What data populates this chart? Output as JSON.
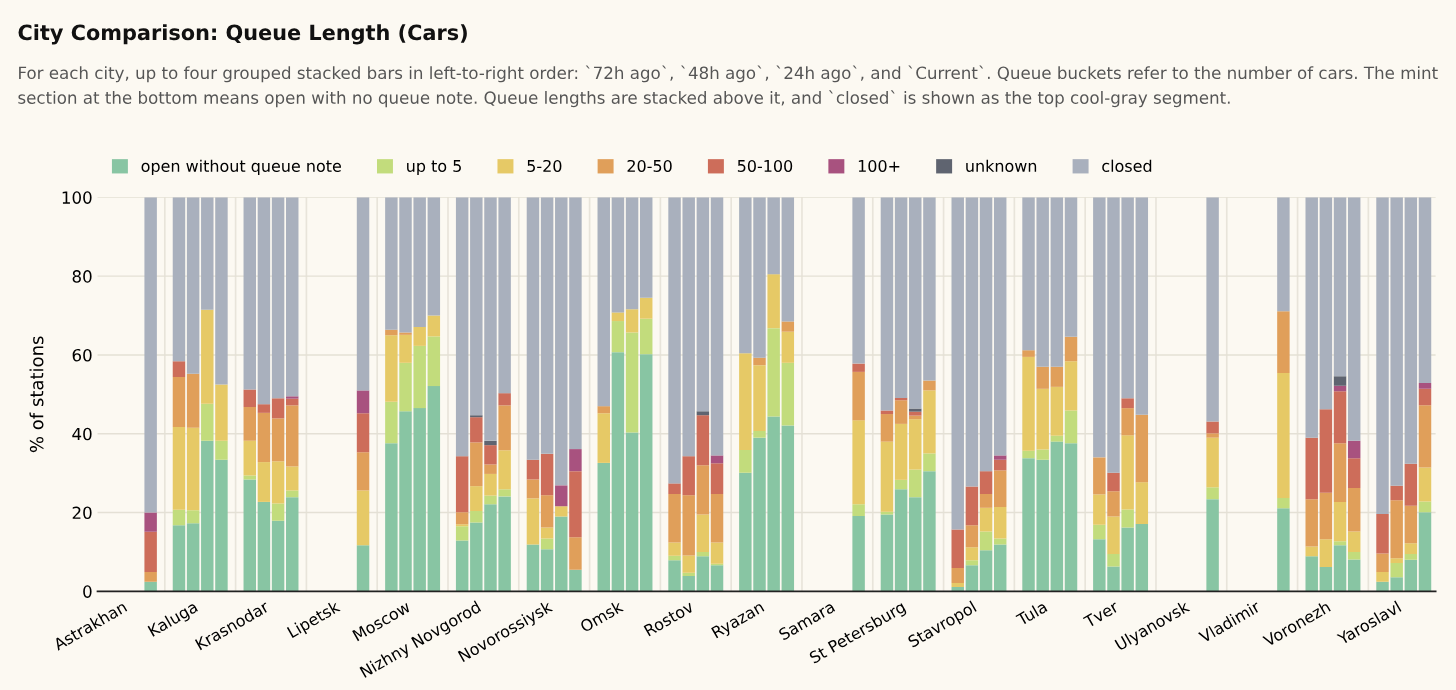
{
  "chart_data": {
    "type": "bar",
    "stacked": true,
    "title": "City Comparison: Queue Length (Cars)",
    "subtitle": "For each city, up to four grouped stacked bars in left-to-right order: `72h ago`, `48h ago`, `24h ago`, and `Current`. Queue buckets refer to the number of cars. The mint section at the bottom means open with no queue note. Queue lengths are stacked above it, and `closed` is shown as the top cool-gray segment.",
    "ylabel": "% of stations",
    "ylim": [
      0,
      100
    ],
    "yticks": [
      0,
      20,
      40,
      60,
      80,
      100
    ],
    "grid": true,
    "legend": "top",
    "categories": [
      null,
      "Astrakhan",
      null,
      null,
      null,
      null,
      "Kaluga",
      null,
      null,
      null,
      null,
      "Krasnodar",
      null,
      null,
      null,
      null,
      "Lipetsk",
      null,
      null,
      null,
      null,
      "Moscow",
      null,
      null,
      null,
      null,
      "Nizhny Novgorod",
      null,
      null,
      null,
      null,
      "Novorossiysk",
      null,
      null,
      null,
      null,
      "Omsk",
      null,
      null,
      null,
      null,
      "Rostov",
      null,
      null,
      null,
      null,
      "Ryazan",
      null,
      null,
      null,
      null,
      "Samara",
      null,
      null,
      null,
      null,
      "St Petersburg",
      null,
      null,
      null,
      null,
      "Stavropol",
      null,
      null,
      null,
      null,
      "Tula",
      null,
      null,
      null,
      null,
      "Tver",
      null,
      null,
      null,
      null,
      "Ulyanovsk",
      null,
      null,
      null,
      null,
      "Vladimir",
      null,
      null,
      null,
      null,
      "Voronezh",
      null,
      null,
      null,
      null,
      "Yaroslavl",
      null,
      null,
      null
    ],
    "series": [
      {
        "name": "open without queue note",
        "color": "#88c5a3",
        "values": [
          null,
          null,
          null,
          2.4,
          null,
          16.8,
          17.3,
          38.2,
          33.4,
          null,
          28.4,
          22.7,
          17.9,
          23.9,
          null,
          null,
          null,
          null,
          11.7,
          null,
          37.6,
          45.7,
          46.5,
          52.1,
          null,
          12.9,
          17.5,
          22.1,
          24.1,
          null,
          11.9,
          10.7,
          19.0,
          5.5,
          null,
          32.6,
          60.7,
          40.3,
          60.2,
          null,
          7.9,
          3.9,
          8.9,
          6.6,
          null,
          30.1,
          39.0,
          44.4,
          42.1,
          null,
          null,
          null,
          null,
          19.1,
          null,
          19.5,
          25.9,
          23.9,
          30.5,
          null,
          1.1,
          6.6,
          10.4,
          11.9,
          null,
          33.8,
          33.4,
          38.0,
          37.6,
          null,
          13.2,
          6.3,
          16.2,
          17.1,
          null,
          null,
          null,
          null,
          23.4,
          null,
          null,
          null,
          null,
          21.1,
          null,
          8.9,
          6.2,
          11.7,
          8.1,
          null,
          2.4,
          3.6,
          8.0,
          20.1,
          null
        ]
      },
      {
        "name": "up to 5",
        "color": "#c2dc7c",
        "values": [
          null,
          null,
          null,
          0,
          null,
          3.9,
          3.3,
          9.4,
          4.8,
          null,
          1.0,
          0,
          4.4,
          1.7,
          null,
          null,
          null,
          null,
          0,
          null,
          10.5,
          12.3,
          15.8,
          12.6,
          null,
          3.6,
          2.9,
          2.2,
          1.8,
          null,
          0,
          2.7,
          0,
          0,
          null,
          0,
          7.9,
          25.4,
          9.0,
          null,
          1.1,
          0.8,
          1.1,
          0.4,
          null,
          5.8,
          1.7,
          22.4,
          15.9,
          null,
          null,
          null,
          null,
          3.0,
          null,
          0.7,
          2.4,
          7.0,
          4.5,
          null,
          0,
          1.3,
          4.8,
          1.5,
          null,
          1.9,
          2.6,
          1.5,
          8.3,
          null,
          3.7,
          3.2,
          4.6,
          0,
          null,
          null,
          null,
          null,
          3.0,
          null,
          null,
          null,
          null,
          2.6,
          null,
          0,
          0,
          1.0,
          1.9,
          null,
          0,
          3.6,
          1.5,
          2.7,
          null
        ]
      },
      {
        "name": "5-20",
        "color": "#e6c966",
        "values": [
          null,
          null,
          null,
          0,
          null,
          21.0,
          20.9,
          23.9,
          14.3,
          null,
          8.8,
          10.1,
          10.7,
          6.1,
          null,
          null,
          null,
          null,
          13.9,
          null,
          16.9,
          7.1,
          4.8,
          5.3,
          null,
          0.5,
          6.3,
          5.5,
          9.9,
          null,
          11.7,
          2.8,
          2.6,
          0,
          null,
          12.6,
          2.2,
          5.9,
          5.3,
          null,
          3.4,
          4.4,
          9.5,
          5.4,
          null,
          24.5,
          16.7,
          13.7,
          7.9,
          null,
          null,
          null,
          null,
          21.3,
          null,
          17.8,
          14.2,
          12.8,
          16.0,
          null,
          1.0,
          3.3,
          6.0,
          8.0,
          null,
          23.8,
          15.4,
          12.4,
          12.5,
          null,
          7.7,
          9.5,
          18.8,
          10.6,
          null,
          null,
          null,
          null,
          12.6,
          null,
          null,
          null,
          null,
          31.7,
          null,
          2.5,
          7.0,
          10.0,
          5.2,
          null,
          2.5,
          1.2,
          2.7,
          8.6,
          null
        ]
      },
      {
        "name": "20-50",
        "color": "#e09f5a",
        "values": [
          null,
          null,
          null,
          2.5,
          null,
          12.7,
          13.7,
          0,
          0,
          null,
          8.6,
          12.5,
          10.9,
          15.5,
          null,
          null,
          null,
          null,
          9.7,
          null,
          1.4,
          0.6,
          0,
          0,
          null,
          3.1,
          11.1,
          2.4,
          11.4,
          null,
          4.8,
          8.2,
          0,
          8.2,
          null,
          1.8,
          0,
          0,
          0,
          null,
          12.3,
          15.3,
          12.5,
          12.3,
          null,
          0,
          1.9,
          0,
          2.6,
          null,
          null,
          null,
          null,
          12.3,
          null,
          7.0,
          6.0,
          0.9,
          2.5,
          null,
          3.8,
          5.6,
          3.5,
          9.3,
          null,
          1.7,
          5.6,
          5.1,
          6.2,
          null,
          9.4,
          6.4,
          6.9,
          17.1,
          null,
          null,
          null,
          null,
          1.1,
          null,
          null,
          null,
          null,
          15.7,
          null,
          12.0,
          11.8,
          14.9,
          11.0,
          null,
          4.7,
          14.7,
          9.5,
          15.8,
          null
        ]
      },
      {
        "name": "50-100",
        "color": "#cd6d5a",
        "values": [
          null,
          null,
          null,
          10.2,
          null,
          4.0,
          0,
          0,
          0,
          null,
          4.4,
          2.2,
          5.1,
          1.7,
          null,
          null,
          null,
          null,
          9.9,
          null,
          0,
          0,
          0,
          0,
          null,
          14.2,
          6.4,
          4.9,
          3.1,
          null,
          5.0,
          10.5,
          0,
          16.8,
          null,
          0,
          0,
          0,
          0,
          null,
          2.7,
          9.9,
          12.7,
          7.8,
          null,
          0,
          0,
          0,
          0,
          null,
          null,
          null,
          null,
          2.1,
          null,
          0.9,
          0.6,
          1.0,
          0,
          null,
          9.8,
          9.8,
          5.8,
          2.7,
          null,
          0,
          0,
          0,
          0,
          null,
          0,
          4.7,
          2.5,
          0,
          null,
          null,
          null,
          null,
          3.0,
          null,
          null,
          null,
          null,
          0,
          null,
          15.6,
          21.2,
          13.2,
          7.6,
          null,
          10.0,
          3.7,
          10.7,
          4.2,
          null
        ]
      },
      {
        "name": "100+",
        "color": "#a8527f",
        "values": [
          null,
          null,
          null,
          4.9,
          null,
          0,
          0,
          0,
          0,
          null,
          0,
          0,
          0,
          0.6,
          null,
          null,
          null,
          null,
          5.8,
          null,
          0,
          0,
          0,
          0,
          null,
          0,
          0,
          0,
          0,
          null,
          0,
          0,
          5.3,
          5.6,
          null,
          0,
          0,
          0,
          0,
          null,
          0,
          0,
          0,
          2.0,
          null,
          0,
          0,
          0,
          0,
          null,
          null,
          null,
          null,
          0,
          null,
          0,
          0,
          0,
          0,
          null,
          0,
          0,
          0,
          1.1,
          null,
          0,
          0,
          0,
          0,
          null,
          0,
          0,
          0,
          0,
          null,
          null,
          null,
          null,
          0,
          null,
          null,
          null,
          null,
          0,
          null,
          0,
          0,
          1.4,
          4.4,
          null,
          0,
          0,
          0,
          1.5,
          null
        ]
      },
      {
        "name": "unknown",
        "color": "#5f6470",
        "values": [
          null,
          null,
          null,
          0,
          null,
          0,
          0,
          0,
          0,
          null,
          0,
          0,
          0,
          0,
          null,
          null,
          null,
          null,
          0,
          null,
          0,
          0,
          0,
          0,
          null,
          0,
          0.5,
          1.1,
          0,
          null,
          0,
          0,
          0,
          0,
          null,
          0,
          0,
          0,
          0,
          null,
          0,
          0,
          1.0,
          0,
          null,
          0,
          0,
          0,
          0,
          null,
          null,
          null,
          null,
          0,
          null,
          0,
          0,
          0.8,
          0,
          null,
          0,
          0,
          0,
          0,
          null,
          0,
          0,
          0,
          0,
          null,
          0,
          0,
          0,
          0,
          null,
          null,
          null,
          null,
          0,
          null,
          null,
          null,
          null,
          0,
          null,
          0,
          0,
          2.4,
          0,
          null,
          0,
          0,
          0,
          0,
          null
        ]
      },
      {
        "name": "closed",
        "color": "#a9b0bd",
        "values": [
          null,
          null,
          null,
          80.0,
          null,
          41.6,
          44.8,
          28.5,
          47.5,
          null,
          48.8,
          52.5,
          51.0,
          50.5,
          null,
          null,
          null,
          null,
          49.0,
          null,
          33.6,
          34.3,
          32.9,
          30.0,
          null,
          65.7,
          55.3,
          61.8,
          49.7,
          null,
          66.6,
          65.1,
          73.1,
          63.9,
          null,
          53.0,
          29.2,
          28.4,
          25.5,
          null,
          72.6,
          65.7,
          54.3,
          65.5,
          null,
          39.6,
          40.7,
          19.5,
          31.5,
          null,
          null,
          null,
          null,
          42.2,
          null,
          54.1,
          50.9,
          53.6,
          46.5,
          null,
          84.3,
          73.4,
          69.5,
          65.5,
          null,
          38.8,
          43.0,
          43.0,
          35.4,
          null,
          66.0,
          69.9,
          51.0,
          55.2,
          null,
          null,
          null,
          null,
          56.9,
          null,
          null,
          null,
          null,
          28.9,
          null,
          61.0,
          53.8,
          45.4,
          61.8,
          null,
          80.4,
          73.2,
          67.6,
          47.1,
          null
        ]
      }
    ]
  }
}
